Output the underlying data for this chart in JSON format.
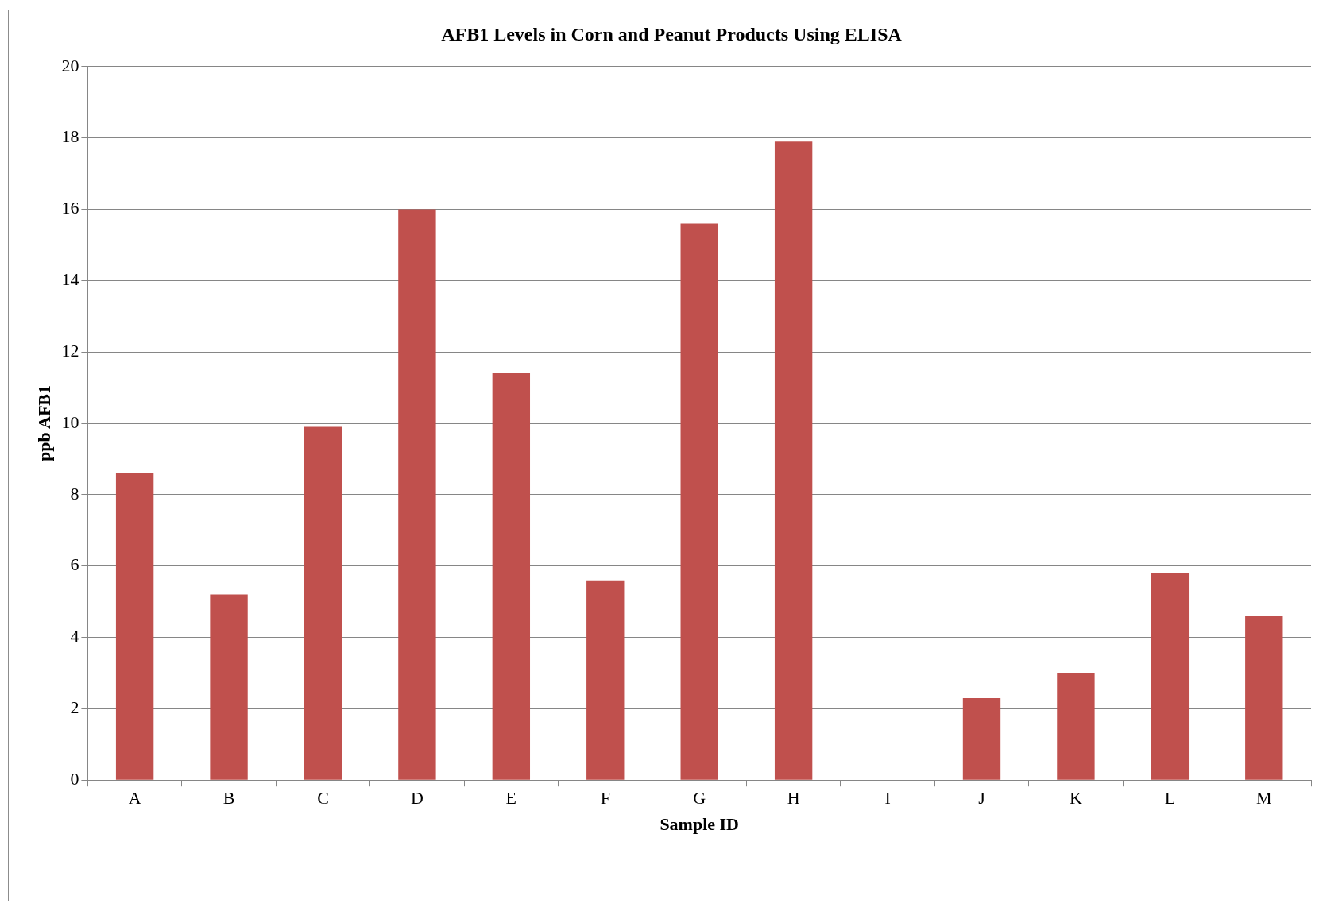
{
  "chart_data": {
    "type": "bar",
    "title": "AFB1 Levels in Corn and Peanut Products Using ELISA",
    "xlabel": "Sample ID",
    "ylabel": "ppb AFB1",
    "categories": [
      "A",
      "B",
      "C",
      "D",
      "E",
      "F",
      "G",
      "H",
      "I",
      "J",
      "K",
      "L",
      "M"
    ],
    "values": [
      8.6,
      5.2,
      9.9,
      16.0,
      11.4,
      5.6,
      15.6,
      17.9,
      0,
      2.3,
      3.0,
      5.8,
      4.6
    ],
    "color": "#c0504d",
    "ylim": [
      0,
      20
    ],
    "yticks": [
      0,
      2,
      4,
      6,
      8,
      10,
      12,
      14,
      16,
      18,
      20
    ],
    "grid": "y",
    "legend": false
  }
}
